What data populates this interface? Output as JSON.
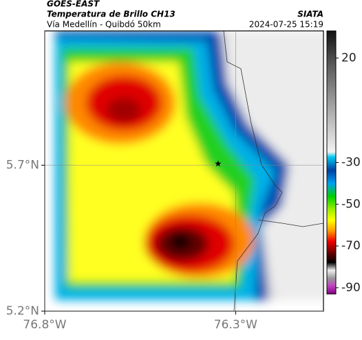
{
  "header": {
    "title": "GOES-EAST",
    "subtitle": "Temperatura de Brillo CH13",
    "location": "Vía Medellín - Quibdó 50km",
    "source": "SIATA",
    "datetime": "2024-07-25 15:19"
  },
  "map": {
    "xlim": [
      -76.8,
      -76.07
    ],
    "ylim": [
      5.2,
      6.16
    ],
    "xticks": [
      {
        "value": -76.8,
        "label": "76.8°W"
      },
      {
        "value": -76.3,
        "label": "76.3°W"
      }
    ],
    "yticks": [
      {
        "value": 5.2,
        "label": "5.2°N"
      },
      {
        "value": 5.7,
        "label": "5.7°N"
      }
    ],
    "grid": true,
    "station": {
      "lon": -76.346,
      "lat": 5.705
    }
  },
  "colorbar": {
    "lim": [
      -93,
      33
    ],
    "ticks": [
      20,
      -30,
      -50,
      -70,
      -90
    ]
  }
}
